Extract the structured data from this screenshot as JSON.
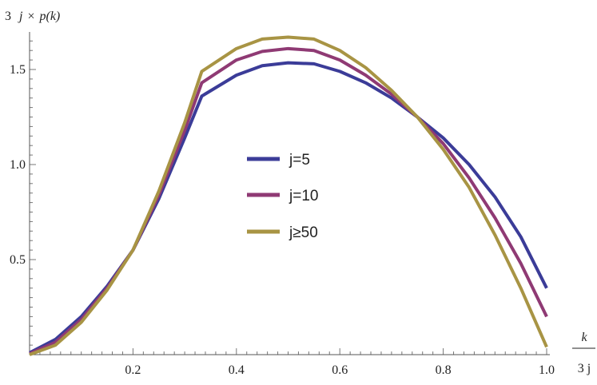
{
  "chart_data": {
    "type": "line",
    "ylabel_parts": [
      "3",
      "j",
      "×",
      "p(k)"
    ],
    "xlabel_num": "k",
    "xlabel_den": "3 j",
    "xlim": [
      0,
      1.0
    ],
    "ylim": [
      0,
      1.65
    ],
    "x_ticks": [
      {
        "v": 0.2,
        "label": "0.2"
      },
      {
        "v": 0.4,
        "label": "0.4"
      },
      {
        "v": 0.6,
        "label": "0.6"
      },
      {
        "v": 0.8,
        "label": "0.8"
      },
      {
        "v": 1.0,
        "label": "1.0"
      }
    ],
    "y_ticks": [
      {
        "v": 0.5,
        "label": "0.5"
      },
      {
        "v": 1.0,
        "label": "1.0"
      },
      {
        "v": 1.5,
        "label": "1.5"
      }
    ],
    "legend_position": "center",
    "series": [
      {
        "name": "j=5",
        "color": "#3b3c98",
        "x": [
          0,
          0.05,
          0.1,
          0.15,
          0.2,
          0.25,
          0.3,
          0.333,
          0.4,
          0.45,
          0.5,
          0.55,
          0.6,
          0.65,
          0.7,
          0.75,
          0.8,
          0.85,
          0.9,
          0.95,
          1.0
        ],
        "y": [
          0.01,
          0.08,
          0.2,
          0.36,
          0.55,
          0.82,
          1.14,
          1.36,
          1.47,
          1.52,
          1.535,
          1.53,
          1.49,
          1.43,
          1.35,
          1.25,
          1.14,
          1.0,
          0.83,
          0.62,
          0.35
        ]
      },
      {
        "name": "j=10",
        "color": "#8f3a74",
        "x": [
          0,
          0.05,
          0.1,
          0.15,
          0.2,
          0.25,
          0.3,
          0.333,
          0.4,
          0.45,
          0.5,
          0.55,
          0.6,
          0.65,
          0.7,
          0.75,
          0.8,
          0.85,
          0.9,
          0.95,
          1.0
        ],
        "y": [
          0.005,
          0.065,
          0.185,
          0.35,
          0.55,
          0.84,
          1.18,
          1.43,
          1.55,
          1.595,
          1.61,
          1.6,
          1.55,
          1.47,
          1.37,
          1.25,
          1.11,
          0.93,
          0.72,
          0.48,
          0.2
        ]
      },
      {
        "name": "j≥50",
        "color": "#a89444",
        "x": [
          0,
          0.05,
          0.1,
          0.15,
          0.2,
          0.25,
          0.3,
          0.333,
          0.4,
          0.45,
          0.5,
          0.55,
          0.6,
          0.65,
          0.7,
          0.75,
          0.8,
          0.85,
          0.9,
          0.95,
          1.0
        ],
        "y": [
          0.0,
          0.05,
          0.17,
          0.34,
          0.55,
          0.86,
          1.22,
          1.49,
          1.61,
          1.66,
          1.67,
          1.66,
          1.6,
          1.51,
          1.39,
          1.25,
          1.08,
          0.88,
          0.63,
          0.35,
          0.04
        ]
      }
    ]
  }
}
